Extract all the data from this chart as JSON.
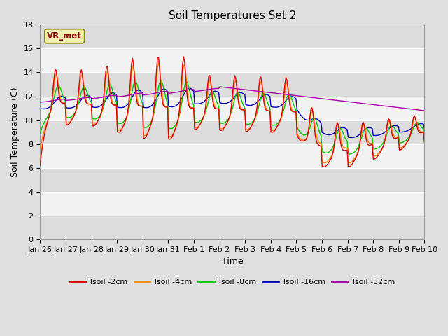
{
  "title": "Soil Temperatures Set 2",
  "xlabel": "Time",
  "ylabel": "Soil Temperature (C)",
  "ylim": [
    0,
    18
  ],
  "yticks": [
    0,
    2,
    4,
    6,
    8,
    10,
    12,
    14,
    16,
    18
  ],
  "xtick_labels": [
    "Jan 26",
    "Jan 27",
    "Jan 28",
    "Jan 29",
    "Jan 30",
    "Jan 31",
    "Feb 1",
    "Feb 2",
    "Feb 3",
    "Feb 4",
    "Feb 5",
    "Feb 6",
    "Feb 7",
    "Feb 8",
    "Feb 9",
    "Feb 10"
  ],
  "annotation": "VR_met",
  "legend_labels": [
    "Tsoil -2cm",
    "Tsoil -4cm",
    "Tsoil -8cm",
    "Tsoil -16cm",
    "Tsoil -32cm"
  ],
  "colors": [
    "#dd0000",
    "#ff8800",
    "#00cc00",
    "#0000bb",
    "#aa00aa"
  ],
  "background_color": "#e0e0e0",
  "plot_bg_light": "#f2f2f2",
  "plot_bg_dark": "#dcdcdc",
  "title_fontsize": 11,
  "axis_label_fontsize": 9,
  "tick_fontsize": 8
}
